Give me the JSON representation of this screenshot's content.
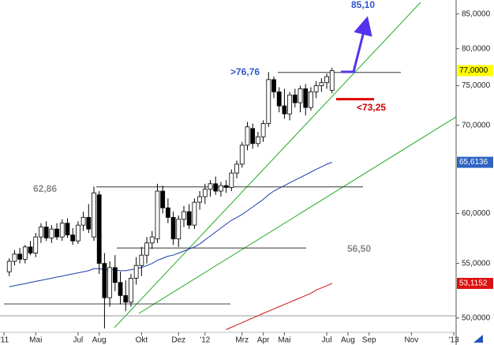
{
  "chart_data": {
    "type": "candlestick",
    "log_scale": true,
    "ylim": [
      47.7,
      87.1
    ],
    "yticks": [
      {
        "value": 50,
        "label": "50,0000"
      },
      {
        "value": 55,
        "label": "55,0000"
      },
      {
        "value": 60,
        "label": "60,0000"
      },
      {
        "value": 70,
        "label": "70,0000"
      },
      {
        "value": 75,
        "label": "75,0000"
      },
      {
        "value": 80,
        "label": "80,0000"
      },
      {
        "value": 85,
        "label": "85,0000"
      }
    ],
    "categories": [
      "'11",
      null,
      null,
      null,
      null,
      null,
      "Mai",
      null,
      null,
      null,
      null,
      null,
      null,
      null,
      "Jul",
      null,
      null,
      null,
      "Aug",
      null,
      null,
      null,
      null,
      null,
      null,
      null,
      "Okt",
      null,
      null,
      null,
      null,
      null,
      null,
      "Dez",
      null,
      null,
      null,
      null,
      "'12",
      null,
      null,
      null,
      null,
      null,
      null,
      "Mrz",
      null,
      null,
      null,
      "Apr",
      null,
      null,
      null,
      "Mai",
      null,
      null,
      null,
      null,
      null,
      null,
      null,
      "Jul",
      null,
      null,
      null,
      "Aug",
      null,
      null,
      null,
      "Sep",
      null,
      null,
      null,
      null,
      null,
      null,
      null,
      "Nov",
      null,
      null,
      null,
      null,
      null,
      null,
      null,
      "'13"
    ],
    "open": [
      null,
      54.2,
      55.2,
      55.9,
      55.4,
      56.6,
      56.0,
      57.6,
      58.6,
      57.5,
      58.4,
      57.6,
      59.0,
      57.8,
      57.2,
      58.8,
      59.6,
      57.6,
      62.0,
      55.0,
      51.8,
      54.6,
      53.2,
      52.0,
      51.4,
      53.6,
      54.8,
      55.8,
      57.0,
      57.4,
      62.4,
      60.6,
      59.6,
      57.4,
      59.4,
      60.2,
      58.8,
      61.2,
      61.8,
      62.6,
      63.2,
      62.4,
      63.0,
      62.8,
      64.4,
      65.4,
      67.6,
      69.6,
      67.8,
      68.6,
      70.2,
      75.8,
      74.2,
      72.4,
      71.4,
      73.8,
      72.8,
      74.6,
      72.2,
      74.2,
      75.0,
      75.4,
      74.4,
      null,
      null,
      null,
      null,
      null,
      null,
      null,
      null,
      null,
      null,
      null,
      null,
      null,
      null,
      null,
      null,
      null,
      null,
      null,
      null,
      null,
      null,
      null
    ],
    "high": [
      null,
      55.5,
      56.3,
      56.5,
      56.8,
      57.2,
      58.0,
      59.0,
      59.2,
      58.8,
      59.0,
      59.4,
      59.5,
      58.5,
      59.2,
      60.2,
      61.0,
      62.9,
      62.4,
      56.0,
      55.2,
      55.8,
      54.2,
      53.4,
      54.0,
      55.6,
      56.6,
      57.6,
      58.2,
      63.2,
      63.0,
      61.6,
      60.2,
      59.8,
      60.8,
      61.0,
      61.6,
      62.4,
      63.2,
      63.6,
      64.0,
      63.4,
      63.6,
      64.8,
      65.8,
      68.0,
      70.4,
      70.2,
      69.2,
      70.6,
      76.8,
      76.2,
      74.8,
      74.6,
      74.2,
      74.6,
      75.0,
      75.2,
      74.8,
      75.6,
      76.0,
      76.6,
      77.4,
      null,
      null,
      null,
      null,
      null,
      null,
      null,
      null,
      null,
      null,
      null,
      null,
      null,
      null,
      null,
      null,
      null,
      null,
      null,
      null,
      null,
      null,
      null
    ],
    "low": [
      null,
      53.8,
      54.8,
      55.0,
      55.0,
      55.8,
      55.6,
      57.0,
      57.2,
      57.0,
      57.3,
      57.2,
      57.5,
      56.8,
      56.9,
      58.2,
      58.0,
      57.2,
      54.0,
      49.1,
      51.0,
      52.4,
      51.2,
      50.6,
      51.0,
      53.0,
      53.8,
      55.0,
      56.4,
      57.0,
      60.0,
      59.0,
      56.8,
      56.6,
      58.6,
      58.4,
      58.4,
      60.4,
      61.0,
      61.8,
      62.0,
      61.8,
      62.2,
      62.4,
      63.8,
      65.0,
      67.0,
      67.2,
      67.4,
      68.0,
      69.8,
      73.4,
      71.6,
      70.8,
      70.6,
      72.2,
      71.6,
      71.2,
      71.8,
      73.4,
      74.2,
      74.6,
      74.0,
      null,
      null,
      null,
      null,
      null,
      null,
      null,
      null,
      null,
      null,
      null,
      null,
      null,
      null,
      null,
      null,
      null,
      null,
      null,
      null,
      null,
      null,
      null
    ],
    "close": [
      null,
      55.2,
      55.9,
      55.4,
      56.6,
      56.0,
      57.6,
      58.6,
      57.5,
      58.4,
      57.6,
      59.0,
      57.8,
      57.2,
      58.8,
      59.6,
      58.4,
      62.2,
      55.0,
      51.8,
      54.6,
      53.2,
      52.0,
      51.4,
      53.6,
      54.8,
      55.8,
      57.0,
      57.6,
      62.4,
      60.6,
      59.6,
      57.4,
      59.4,
      60.2,
      58.8,
      61.2,
      61.8,
      62.6,
      63.2,
      62.4,
      63.0,
      62.8,
      64.4,
      65.4,
      67.6,
      69.8,
      67.8,
      68.6,
      70.2,
      75.8,
      74.2,
      72.4,
      71.4,
      73.8,
      72.8,
      74.6,
      72.2,
      74.2,
      75.0,
      75.4,
      76.2,
      77.0,
      null,
      null,
      null,
      null,
      null,
      null,
      null,
      null,
      null,
      null,
      null,
      null,
      null,
      null,
      null,
      null,
      null,
      null,
      null,
      null,
      null,
      null,
      null
    ],
    "moving_averages": [
      {
        "color": "#1a3ea8",
        "values": [
          null,
          52.8,
          52.9,
          53.0,
          53.1,
          53.2,
          53.3,
          53.4,
          53.5,
          53.6,
          53.7,
          53.8,
          53.9,
          54.0,
          54.1,
          54.2,
          54.3,
          54.5,
          54.5,
          54.4,
          54.4,
          54.4,
          54.3,
          54.3,
          54.4,
          54.5,
          54.6,
          54.8,
          55.0,
          55.3,
          55.5,
          55.7,
          55.8,
          56.0,
          56.2,
          56.4,
          56.6,
          56.9,
          57.3,
          57.7,
          58.1,
          58.5,
          58.9,
          59.3,
          59.6,
          59.9,
          60.3,
          60.7,
          61.1,
          61.5,
          62.0,
          62.4,
          62.7,
          63.0,
          63.3,
          63.6,
          63.9,
          64.2,
          64.5,
          64.8,
          65.1,
          65.4,
          65.61,
          null,
          null,
          null,
          null,
          null,
          null,
          null,
          null,
          null,
          null,
          null,
          null,
          null,
          null,
          null,
          null,
          null,
          null,
          null,
          null,
          null,
          null,
          null
        ]
      },
      {
        "color": "#cc1111",
        "values": [
          null,
          null,
          null,
          null,
          null,
          null,
          null,
          null,
          null,
          null,
          null,
          null,
          null,
          null,
          null,
          null,
          null,
          null,
          null,
          null,
          null,
          null,
          null,
          null,
          null,
          null,
          null,
          null,
          null,
          null,
          null,
          null,
          null,
          null,
          null,
          null,
          null,
          null,
          null,
          null,
          null,
          null,
          49.0,
          49.2,
          49.4,
          49.6,
          49.8,
          50.0,
          50.2,
          50.4,
          50.6,
          50.8,
          51.0,
          51.2,
          51.4,
          51.6,
          51.8,
          52.0,
          52.2,
          52.5,
          52.7,
          52.9,
          53.115,
          null,
          null,
          null,
          null,
          null,
          null,
          null,
          null,
          null,
          null,
          null,
          null,
          null,
          null,
          null,
          null,
          null,
          null,
          null,
          null,
          null,
          null,
          null
        ]
      }
    ],
    "levels": [
      {
        "value": 62.86,
        "label": "62,86",
        "color": "#888888",
        "line_color": "#333333"
      },
      {
        "value": 56.5,
        "label": "56,50",
        "color": "#888888",
        "line_color": "#333333"
      },
      {
        "value": 76.76,
        "label": ">76,76",
        "color": "#3355cc",
        "line_color": "#333333"
      },
      {
        "value": 73.25,
        "label": "<73,25",
        "color": "#cc0000",
        "line_color": "#dd0000"
      }
    ],
    "target_label": "85,10",
    "price_tags": [
      {
        "value": 77,
        "label": "77,0000",
        "background": "#ffff00",
        "color": "#000000"
      },
      {
        "value": 65.6136,
        "label": "65,6136",
        "background": "#2d63c4",
        "color": "#ffffff"
      },
      {
        "value": 53.1152,
        "label": "53,1152",
        "background": "#dd1111",
        "color": "#ffffff"
      }
    ]
  }
}
